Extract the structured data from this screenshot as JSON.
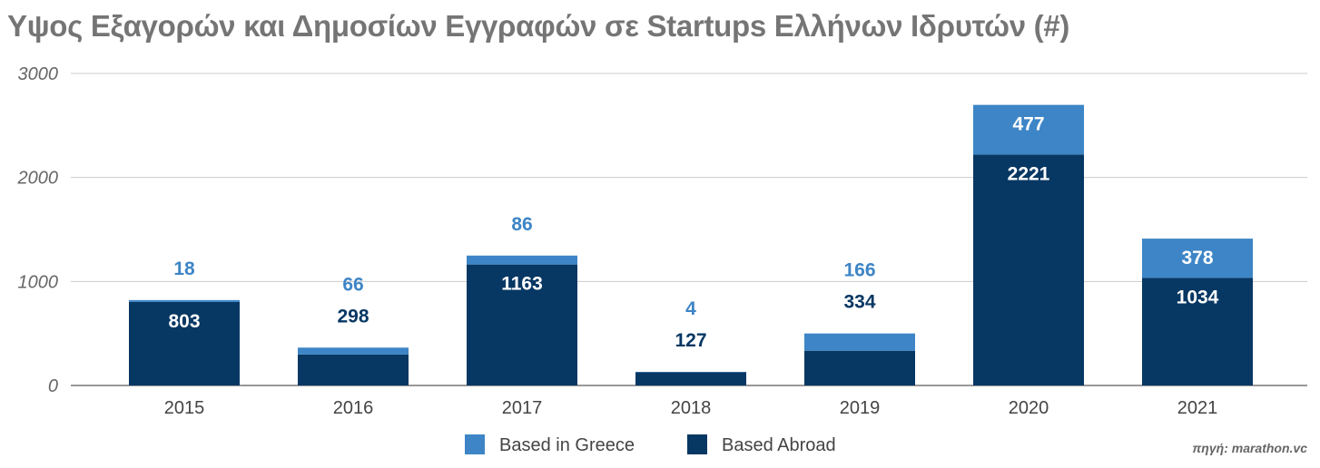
{
  "chart_data": {
    "type": "bar",
    "stacked": true,
    "title": "Υψος Εξαγορών και Δημοσίων Εγγραφών σε Startups Ελλήνων Ιδρυτών (#)",
    "categories": [
      "2015",
      "2016",
      "2017",
      "2018",
      "2019",
      "2020",
      "2021"
    ],
    "series": [
      {
        "name": "Based Abroad",
        "color": "#073763",
        "values": [
          803,
          298,
          1163,
          127,
          334,
          2221,
          1034
        ]
      },
      {
        "name": "Based in Greece",
        "color": "#3d85c6",
        "values": [
          18,
          66,
          86,
          4,
          166,
          477,
          378
        ]
      }
    ],
    "legend_order": [
      "Based in Greece",
      "Based Abroad"
    ],
    "legend_position": "bottom",
    "ylim": [
      0,
      3000
    ],
    "yticks": [
      "0",
      "1000",
      "2000",
      "3000"
    ],
    "grid": true,
    "xlabel": "",
    "ylabel": "",
    "source": "πηγή: marathon.vc"
  }
}
